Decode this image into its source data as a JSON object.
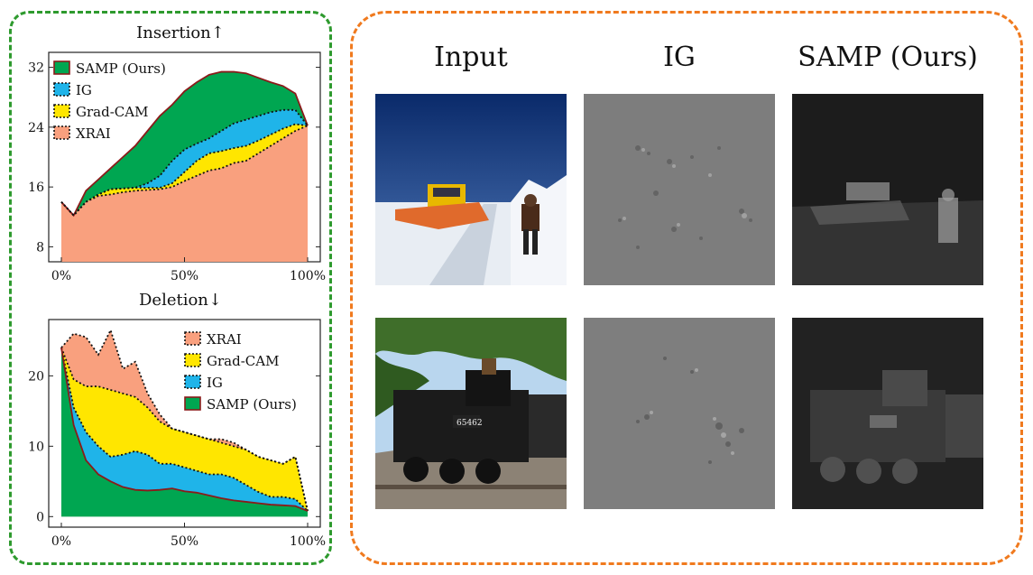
{
  "chart_data": [
    {
      "type": "area",
      "title": "Insertion",
      "title_arrow": "↑",
      "x_tick_labels": [
        "0%",
        "50%",
        "100%"
      ],
      "y_ticks": [
        8,
        16,
        24,
        32
      ],
      "ylim": [
        6,
        34
      ],
      "xlim": [
        0,
        100
      ],
      "legend_placement": "top-left",
      "legend": [
        "SAMP (Ours)",
        "IG",
        "Grad-CAM",
        "XRAI"
      ],
      "x": [
        0,
        5,
        10,
        15,
        20,
        25,
        30,
        35,
        40,
        45,
        50,
        55,
        60,
        65,
        70,
        75,
        80,
        85,
        90,
        95,
        100
      ],
      "series": [
        {
          "name": "SAMP (Ours)",
          "color": "#00a651",
          "values": [
            14,
            12.2,
            15.5,
            17,
            18.5,
            20,
            21.5,
            23.5,
            25.5,
            27,
            28.8,
            30,
            31,
            31.4,
            31.4,
            31.2,
            30.6,
            30,
            29.5,
            28.5,
            24.2
          ]
        },
        {
          "name": "IG",
          "color": "#1fb4e9",
          "values": [
            14,
            12.2,
            14,
            15,
            15.7,
            15.8,
            15.9,
            16.5,
            17.5,
            19.5,
            21,
            21.8,
            22.5,
            23.5,
            24.5,
            25,
            25.5,
            26,
            26.3,
            26.3,
            24.2
          ]
        },
        {
          "name": "Grad-CAM",
          "color": "#ffe600",
          "values": [
            14,
            12.2,
            14,
            15,
            15.7,
            15.8,
            15.9,
            15.9,
            15.9,
            16.5,
            18,
            19.5,
            20.5,
            20.8,
            21.2,
            21.5,
            22.2,
            23,
            23.8,
            24.4,
            24.2
          ]
        },
        {
          "name": "XRAI",
          "color": "#f9a07e",
          "values": [
            14,
            12.2,
            14,
            14.8,
            15,
            15.3,
            15.5,
            15.6,
            15.7,
            16,
            16.8,
            17.5,
            18.2,
            18.5,
            19.2,
            19.5,
            20.5,
            21.5,
            22.5,
            23.5,
            24.2
          ]
        }
      ]
    },
    {
      "type": "area",
      "title": "Deletion",
      "title_arrow": "↓",
      "x_tick_labels": [
        "0%",
        "50%",
        "100%"
      ],
      "y_ticks": [
        0,
        10,
        20
      ],
      "ylim": [
        -1.5,
        28
      ],
      "xlim": [
        0,
        100
      ],
      "legend_placement": "top-right",
      "legend": [
        "XRAI",
        "Grad-CAM",
        "IG",
        "SAMP (Ours)"
      ],
      "x": [
        0,
        5,
        10,
        15,
        20,
        25,
        30,
        35,
        40,
        45,
        50,
        55,
        60,
        65,
        70,
        75,
        80,
        85,
        90,
        95,
        100
      ],
      "series": [
        {
          "name": "XRAI",
          "color": "#f9a07e",
          "values": [
            24,
            26,
            25.5,
            23,
            26.5,
            21,
            22,
            17.5,
            14.5,
            12.5,
            12,
            11.5,
            11,
            11,
            10.5,
            9.5,
            8.5,
            8,
            7.5,
            8.5,
            0.8
          ]
        },
        {
          "name": "Grad-CAM",
          "color": "#ffe600",
          "values": [
            24,
            19.5,
            18.5,
            18.5,
            18,
            17.5,
            17,
            15.5,
            13.5,
            12.5,
            12,
            11.5,
            11,
            10.5,
            10,
            9.5,
            8.5,
            8,
            7.5,
            8.5,
            0.8
          ]
        },
        {
          "name": "IG",
          "color": "#1fb4e9",
          "values": [
            24,
            15.5,
            12,
            10,
            8.5,
            8.8,
            9.3,
            8.8,
            7.5,
            7.5,
            7,
            6.5,
            6,
            6,
            5.5,
            4.5,
            3.5,
            2.8,
            2.8,
            2.5,
            0.8
          ]
        },
        {
          "name": "SAMP (Ours)",
          "color": "#00a651",
          "values": [
            24,
            13,
            8,
            6,
            5,
            4.2,
            3.8,
            3.7,
            3.8,
            4,
            3.6,
            3.4,
            3,
            2.6,
            2.3,
            2.1,
            1.9,
            1.7,
            1.6,
            1.5,
            0.8
          ]
        }
      ]
    }
  ],
  "grid": {
    "columns": [
      "Input",
      "IG",
      "SAMP (Ours)"
    ],
    "rows": 2
  }
}
